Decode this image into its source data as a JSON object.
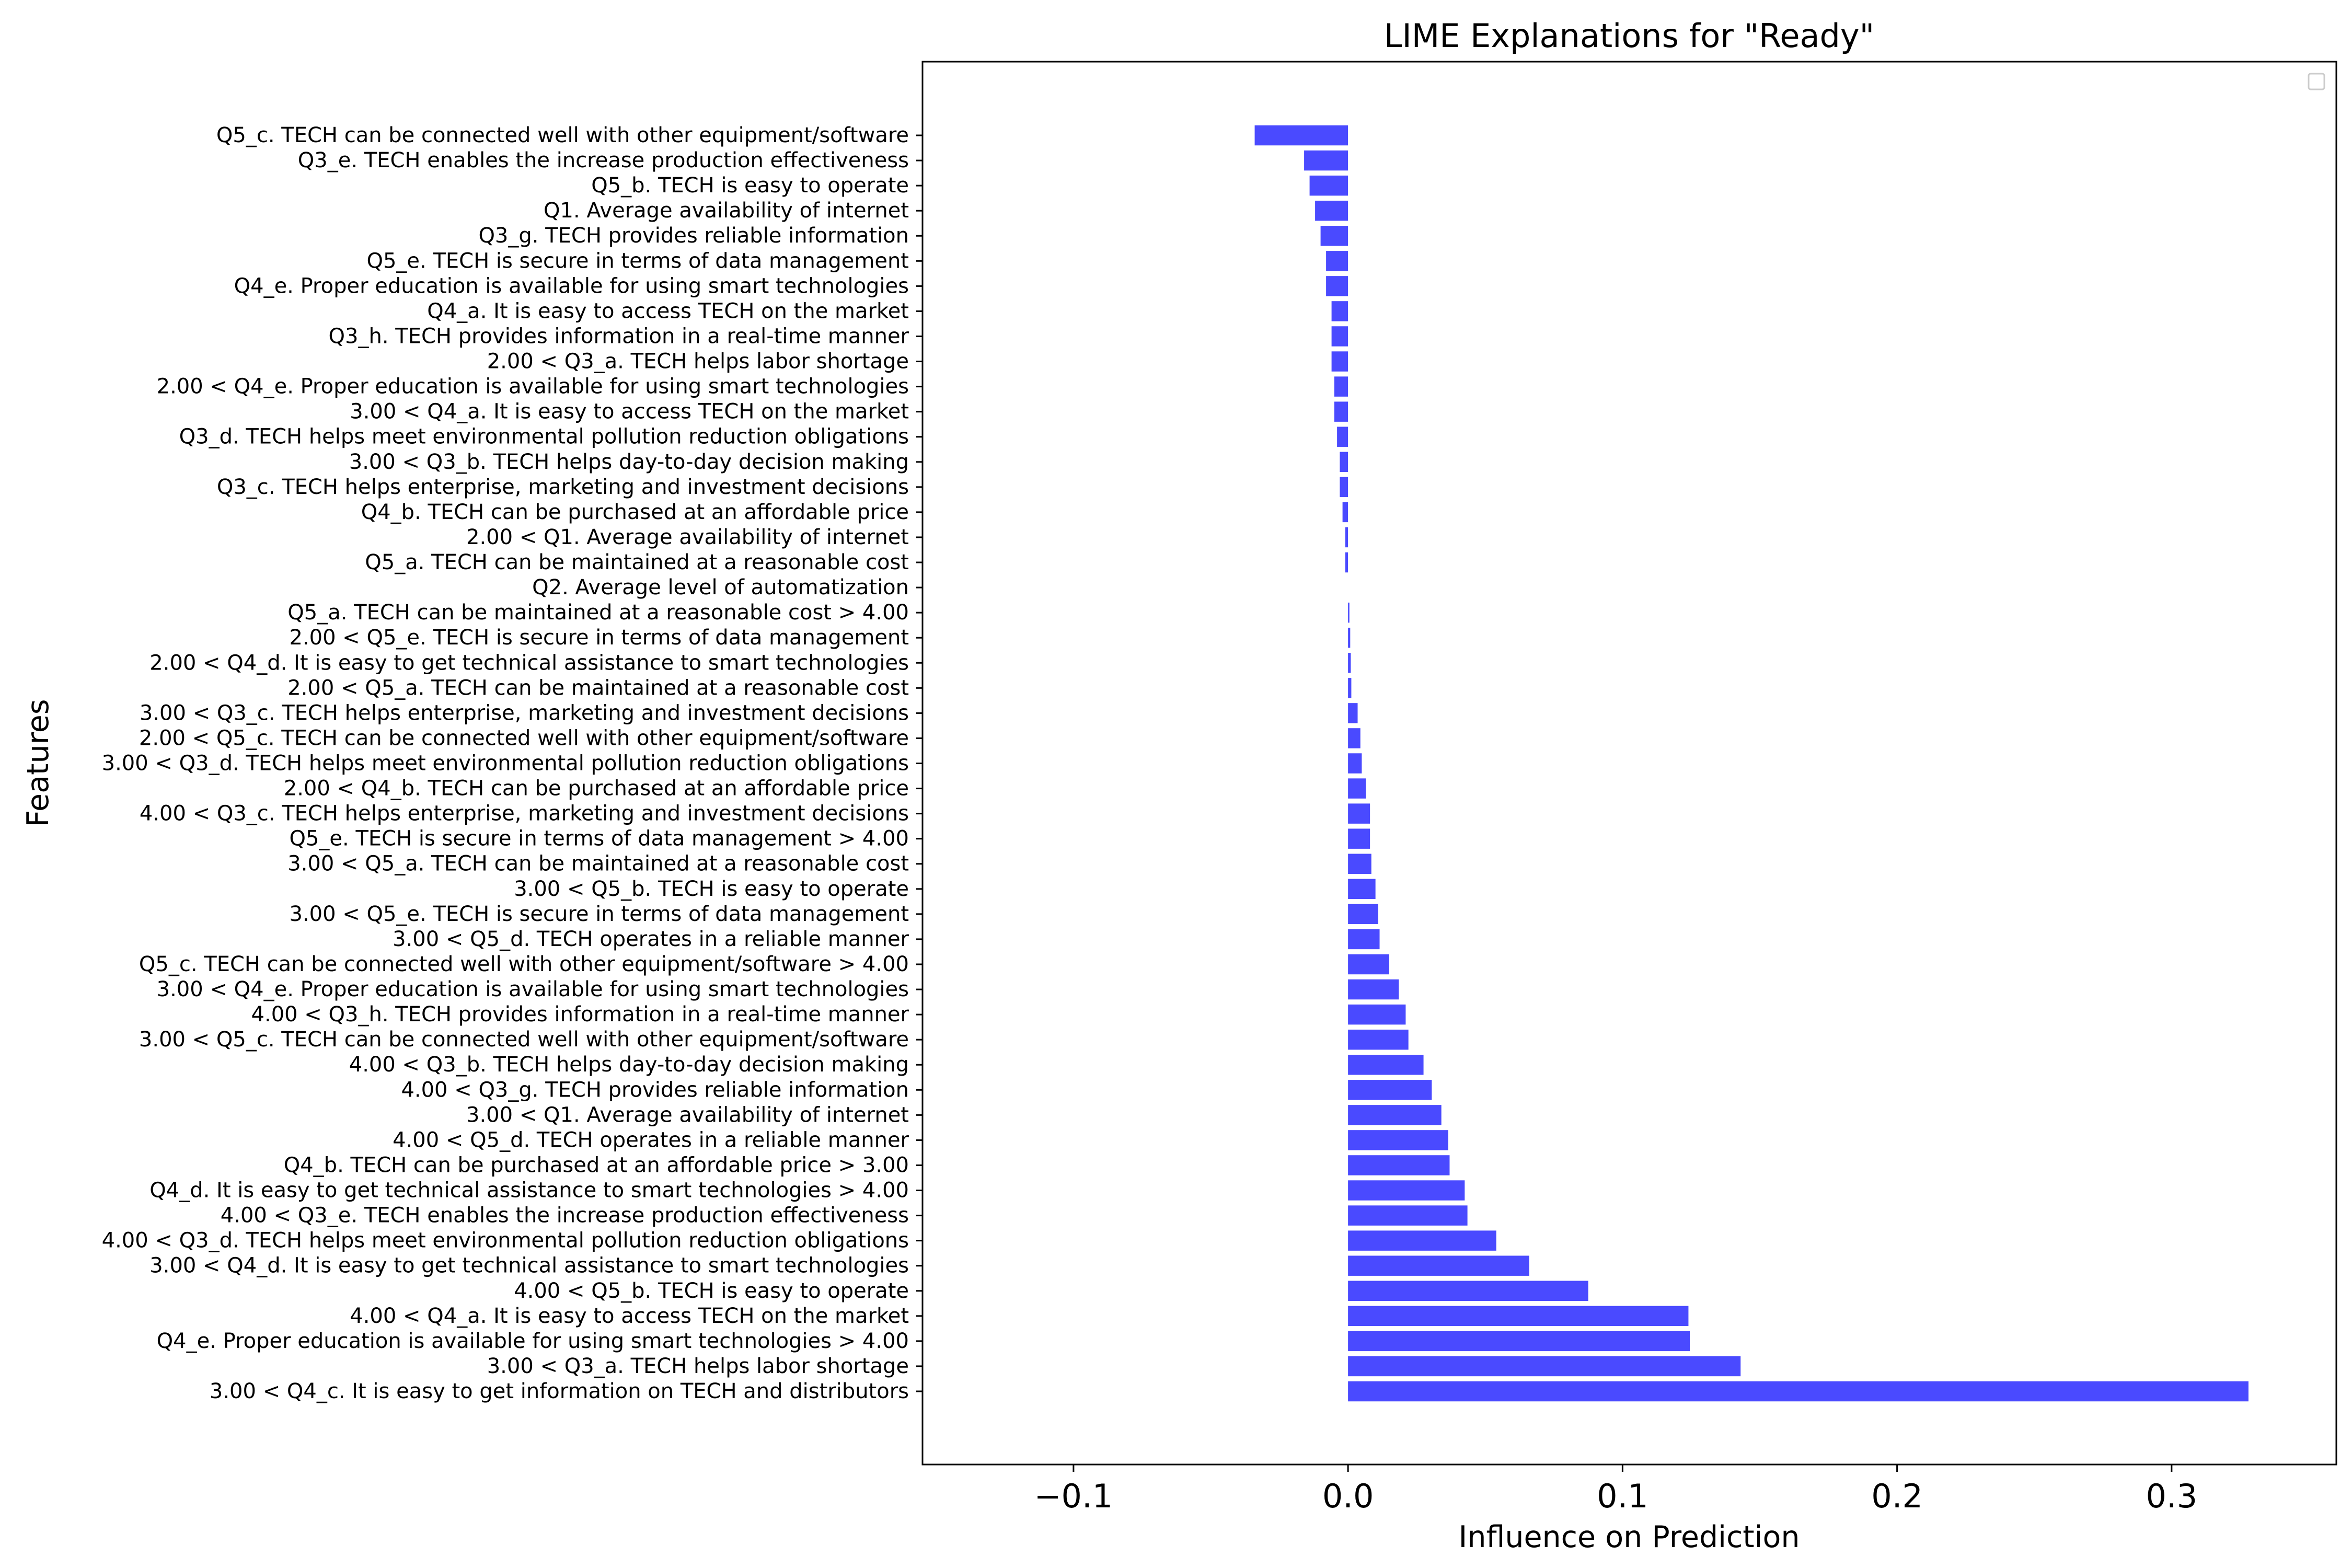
{
  "chart_data": {
    "type": "bar",
    "orientation": "horizontal",
    "title": "LIME Explanations for \"Ready\"",
    "xlabel": "Influence on Prediction",
    "ylabel": "Features",
    "xlim": [
      -0.155,
      0.36
    ],
    "xticks": [
      -0.1,
      0.0,
      0.1,
      0.2,
      0.3
    ],
    "xtick_labels": [
      "−0.1",
      "0.0",
      "0.1",
      "0.2",
      "0.3"
    ],
    "grid": false,
    "legend": "top-right (empty)",
    "bar_color": "#4a4aff",
    "categories": [
      "Q5_c. TECH can be connected well with other equipment/software",
      "Q3_e. TECH enables the increase production effectiveness",
      "Q5_b. TECH is easy to operate",
      "Q1. Average availability of internet",
      "Q3_g. TECH provides reliable information",
      "Q5_e. TECH is secure in terms of data management",
      "Q4_e. Proper education is available for using smart technologies",
      "Q4_a. It is easy to access TECH on the market",
      "Q3_h. TECH provides information in a real-time manner",
      "2.00 < Q3_a. TECH helps labor shortage",
      "2.00 < Q4_e. Proper education is available for using smart technologies",
      "3.00 < Q4_a. It is easy to access TECH on the market",
      "Q3_d. TECH helps meet environmental pollution reduction obligations",
      "3.00 < Q3_b. TECH helps day-to-day decision making",
      "Q3_c. TECH helps enterprise, marketing and investment decisions",
      "Q4_b. TECH can be purchased at an affordable price",
      "2.00 < Q1. Average availability of internet",
      "Q5_a. TECH can be maintained at a reasonable cost",
      "Q2. Average level of automatization",
      "Q5_a. TECH can be maintained at a reasonable cost > 4.00",
      "2.00 < Q5_e. TECH is secure in terms of data management",
      "2.00 < Q4_d. It is easy to get technical assistance to smart technologies",
      "2.00 < Q5_a. TECH can be maintained at a reasonable cost",
      "3.00 < Q3_c. TECH helps enterprise, marketing and investment decisions",
      "2.00 < Q5_c. TECH can be connected well with other equipment/software",
      "3.00 < Q3_d. TECH helps meet environmental pollution reduction obligations",
      "2.00 < Q4_b. TECH can be purchased at an affordable price",
      "4.00 < Q3_c. TECH helps enterprise, marketing and investment decisions",
      "Q5_e. TECH is secure in terms of data management > 4.00",
      "3.00 < Q5_a. TECH can be maintained at a reasonable cost",
      "3.00 < Q5_b. TECH is easy to operate",
      "3.00 < Q5_e. TECH is secure in terms of data management",
      "3.00 < Q5_d. TECH operates in a reliable manner",
      "Q5_c. TECH can be connected well with other equipment/software > 4.00",
      "3.00 < Q4_e. Proper education is available for using smart technologies",
      "4.00 < Q3_h. TECH provides information in a real-time manner",
      "3.00 < Q5_c. TECH can be connected well with other equipment/software",
      "4.00 < Q3_b. TECH helps day-to-day decision making",
      "4.00 < Q3_g. TECH provides reliable information",
      "3.00 < Q1. Average availability of internet",
      "4.00 < Q5_d. TECH operates in a reliable manner",
      "Q4_b. TECH can be purchased at an affordable price > 3.00",
      "Q4_d. It is easy to get technical assistance to smart technologies > 4.00",
      "4.00 < Q3_e. TECH enables the increase production effectiveness",
      "4.00 < Q3_d. TECH helps meet environmental pollution reduction obligations",
      "3.00 < Q4_d. It is easy to get technical assistance to smart technologies",
      "4.00 < Q5_b. TECH is easy to operate",
      "4.00 < Q4_a. It is easy to access TECH on the market",
      "Q4_e. Proper education is available for using smart technologies > 4.00",
      "3.00 < Q3_a. TECH helps labor shortage",
      "3.00 < Q4_c. It is easy to get information on TECH and distributors"
    ],
    "values": [
      -0.034,
      -0.016,
      -0.014,
      -0.012,
      -0.01,
      -0.008,
      -0.008,
      -0.006,
      -0.006,
      -0.006,
      -0.005,
      -0.005,
      -0.004,
      -0.003,
      -0.003,
      -0.002,
      -0.001,
      -0.001,
      0.0,
      0.0005,
      0.0008,
      0.001,
      0.0012,
      0.0035,
      0.0045,
      0.005,
      0.0065,
      0.008,
      0.008,
      0.0085,
      0.01,
      0.011,
      0.0115,
      0.015,
      0.0185,
      0.021,
      0.022,
      0.0275,
      0.0305,
      0.034,
      0.0365,
      0.037,
      0.0425,
      0.0435,
      0.054,
      0.066,
      0.0875,
      0.124,
      0.1245,
      0.143,
      0.328
    ]
  }
}
